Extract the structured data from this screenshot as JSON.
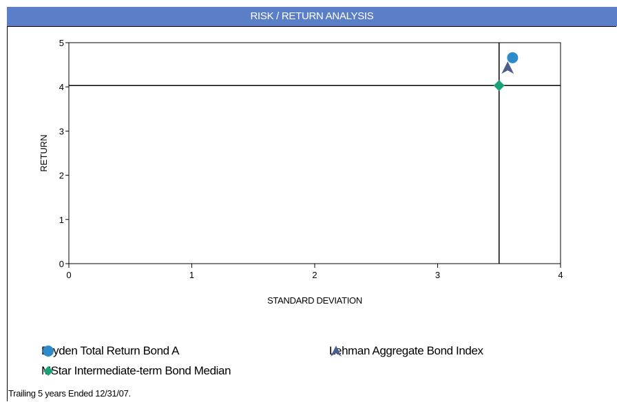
{
  "header": {
    "title": "RISK / RETURN ANALYSIS"
  },
  "chart_data": {
    "type": "scatter",
    "title": "",
    "xlabel": "STANDARD DEVIATION",
    "ylabel": "RETURN",
    "xlim": [
      0,
      4
    ],
    "ylim": [
      0,
      5
    ],
    "x_ticks": [
      0,
      1,
      2,
      3,
      4
    ],
    "y_ticks": [
      0,
      1,
      2,
      3,
      4,
      5
    ],
    "grid": false,
    "reference_lines": {
      "x": 3.5,
      "y": 4.03
    },
    "series": [
      {
        "name": "Dryden Total Return Bond A",
        "marker": "circle",
        "color": "#2e8bc9",
        "x": 3.61,
        "y": 4.66
      },
      {
        "name": "Lehman Aggregate Bond Index",
        "marker": "arrowhead",
        "color": "#4a5f8f",
        "x": 3.57,
        "y": 4.42
      },
      {
        "name": "MStar Intermediate-term Bond Median",
        "marker": "diamond",
        "color": "#1aa37a",
        "x": 3.5,
        "y": 4.03
      }
    ],
    "legend_position": "bottom"
  },
  "legend": [
    {
      "label": "Dryden Total Return Bond A",
      "icon": "circle-icon"
    },
    {
      "label": "Lehman Aggregate Bond Index",
      "icon": "arrowhead-icon"
    },
    {
      "label": "MStar Intermediate-term Bond Median",
      "icon": "diamond-icon"
    }
  ],
  "footnote": "Trailing 5 years Ended 12/31/07."
}
